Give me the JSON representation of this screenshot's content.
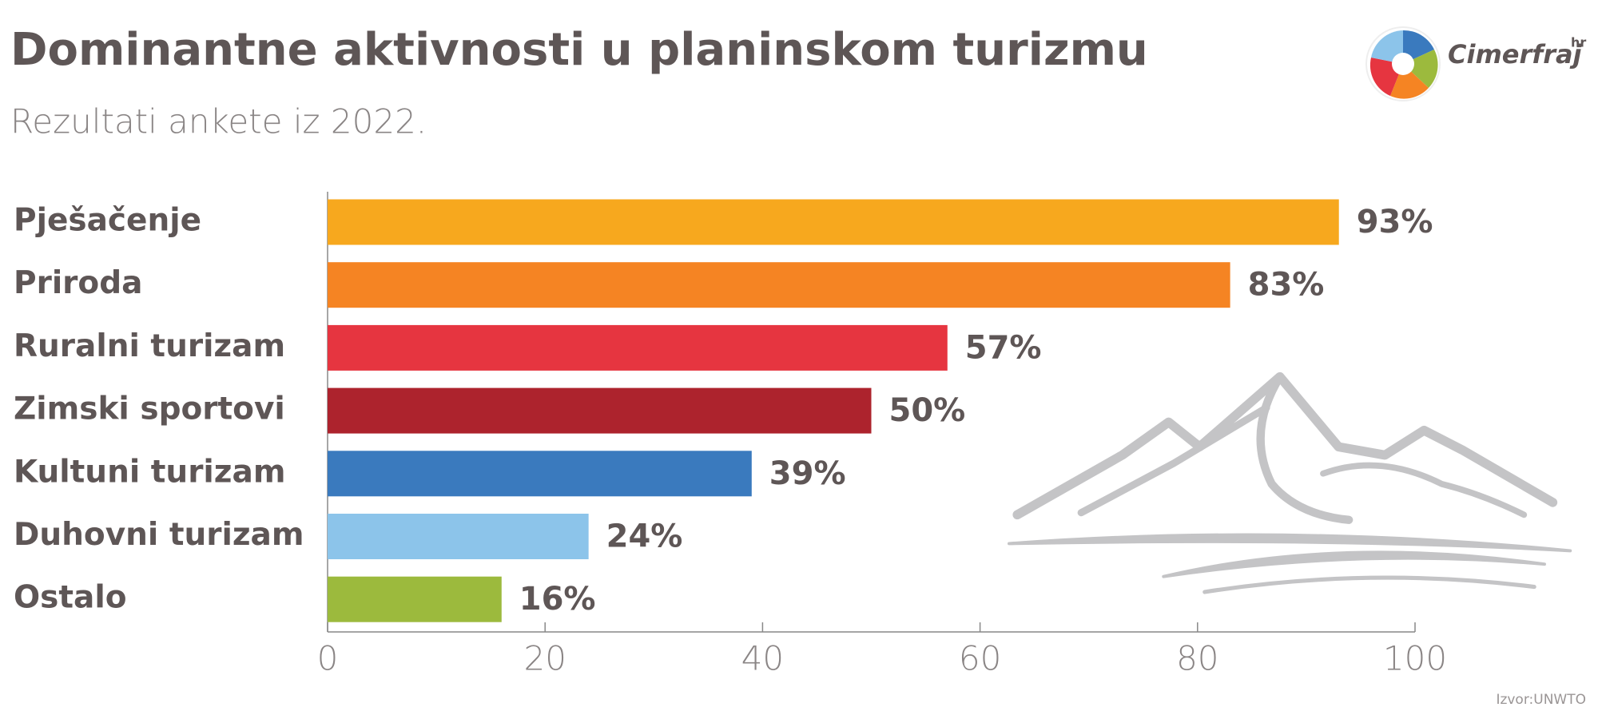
{
  "chart_data": {
    "type": "hbar",
    "title": "Dominantne aktivnosti u planinskom turizmu",
    "subtitle": "Rezultati ankete iz 2022.",
    "categories": [
      "Pješačenje",
      "Priroda",
      "Ruralni turizam",
      "Zimski sportovi",
      "Kultuni turizam",
      "Duhovni turizam",
      "Ostalo"
    ],
    "values": [
      93,
      83,
      57,
      50,
      39,
      24,
      16
    ],
    "value_labels": [
      "93%",
      "83%",
      "57%",
      "50%",
      "39%",
      "24%",
      "16%"
    ],
    "colors": [
      "#f7a81e",
      "#f58423",
      "#e63540",
      "#ad232d",
      "#3a7abe",
      "#8cc4ea",
      "#9cba3d"
    ],
    "xlim": [
      0,
      100
    ],
    "xticks": [
      0,
      20,
      40,
      60,
      80,
      100
    ],
    "grid": false,
    "source": "Izvor:UNWTO"
  },
  "logo": {
    "text": "Cimerfraj",
    "suffix": "hr"
  }
}
